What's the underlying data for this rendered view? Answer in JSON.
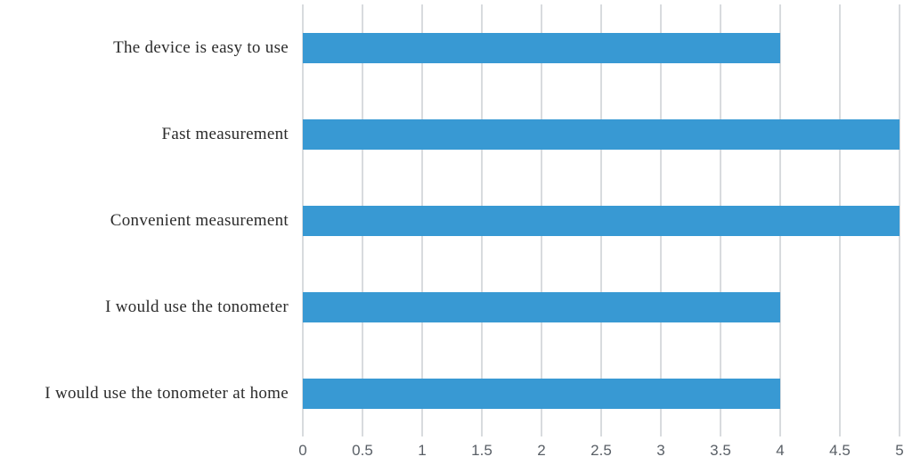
{
  "chart_data": {
    "type": "bar",
    "orientation": "horizontal",
    "title": "",
    "xlabel": "",
    "ylabel": "",
    "categories": [
      "The device is easy to use",
      "Fast measurement",
      "Convenient measurement",
      "I would use the tonometer",
      "I would use the tonometer at home"
    ],
    "values": [
      4,
      5,
      5,
      4,
      4
    ],
    "xlim": [
      0,
      5
    ],
    "x_ticks": [
      0,
      0.5,
      1,
      1.5,
      2,
      2.5,
      3,
      3.5,
      4,
      4.5,
      5
    ],
    "x_tick_labels": [
      "0",
      "0.5",
      "1",
      "1.5",
      "2",
      "2.5",
      "3",
      "3.5",
      "4",
      "4.5",
      "5"
    ],
    "grid": "vertical",
    "legend": "none",
    "colors": {
      "bar": "#3899d3",
      "gridline": "#d8dbde",
      "tick_label": "#595f66",
      "category_label": "#2b2b2b"
    }
  }
}
